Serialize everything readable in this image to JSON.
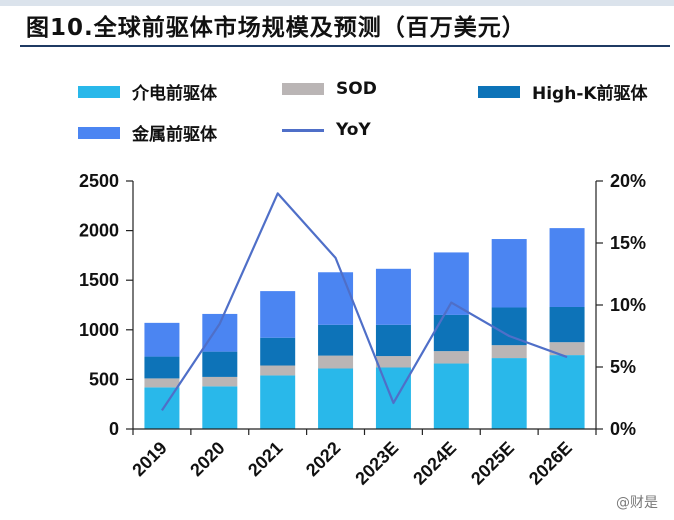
{
  "header": {
    "title": "图10.全球前驱体市场规模及预测（百万美元）"
  },
  "watermark": "@财是",
  "colors": {
    "dielectric": "#29b8ea",
    "sod": "#bab5b5",
    "highk": "#0d73b8",
    "metal": "#4b85f2",
    "yoy": "#4f6fc8"
  },
  "legend": [
    {
      "label": "介电前驱体",
      "series": "dielectric",
      "kind": "bar"
    },
    {
      "label": "SOD",
      "series": "sod",
      "kind": "bar"
    },
    {
      "label": "High-K前驱体",
      "series": "highk",
      "kind": "bar"
    },
    {
      "label": "金属前驱体",
      "series": "metal",
      "kind": "bar"
    },
    {
      "label": "YoY",
      "series": "yoy",
      "kind": "line"
    }
  ],
  "chart_data": {
    "type": "bar",
    "stacked": true,
    "categories": [
      "2019",
      "2020",
      "2021",
      "2022",
      "2023E",
      "2024E",
      "2025E",
      "2026E"
    ],
    "series": [
      {
        "name": "介电前驱体",
        "key": "dielectric",
        "axis": "left",
        "values": [
          420,
          430,
          540,
          610,
          620,
          660,
          715,
          745
        ]
      },
      {
        "name": "SOD",
        "key": "sod",
        "axis": "left",
        "values": [
          90,
          95,
          100,
          130,
          115,
          125,
          130,
          130
        ]
      },
      {
        "name": "High-K前驱体",
        "key": "highk",
        "axis": "left",
        "values": [
          220,
          255,
          280,
          310,
          315,
          365,
          380,
          355
        ]
      },
      {
        "name": "金属前驱体",
        "key": "metal",
        "axis": "left",
        "values": [
          340,
          380,
          470,
          530,
          565,
          630,
          690,
          795
        ]
      },
      {
        "name": "YoY",
        "key": "yoy",
        "type": "line",
        "axis": "right",
        "values": [
          1.5,
          8.5,
          19.0,
          13.8,
          2.1,
          10.2,
          7.5,
          5.8
        ],
        "unit": "%"
      }
    ],
    "y_left": {
      "min": 0,
      "max": 2500,
      "ticks": [
        "0",
        "500",
        "1000",
        "1500",
        "2000",
        "2500"
      ]
    },
    "y_right": {
      "min": 0,
      "max": 20,
      "ticks": [
        "0%",
        "5%",
        "10%",
        "15%",
        "20%"
      ]
    },
    "legend_position": "top"
  }
}
